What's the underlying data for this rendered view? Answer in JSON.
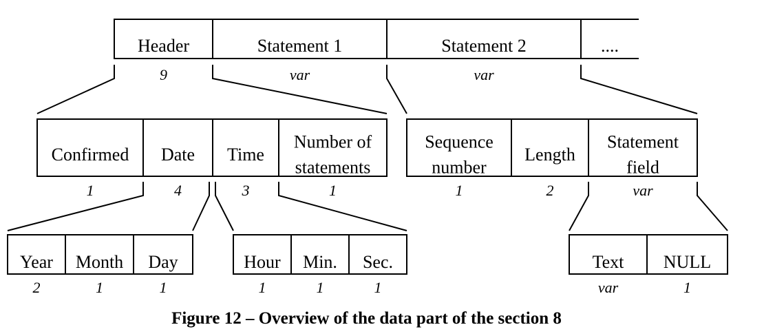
{
  "top_row": {
    "cells": [
      "Header",
      "Statement 1",
      "Statement 2",
      "...."
    ],
    "sizes": [
      "9",
      "var",
      "var"
    ]
  },
  "header_row": {
    "cells": [
      "Confirmed",
      "Date",
      "Time",
      "Number of statements"
    ],
    "lines": [
      [
        "Confirmed"
      ],
      [
        "Date"
      ],
      [
        "Time"
      ],
      [
        "Number of",
        "statements"
      ]
    ],
    "sizes": [
      "1",
      "4",
      "3",
      "1"
    ]
  },
  "statement_row": {
    "cells": [
      "Sequence number",
      "Length",
      "Statement field"
    ],
    "lines": [
      [
        "Sequence",
        "number"
      ],
      [
        "Length"
      ],
      [
        "Statement",
        "field"
      ]
    ],
    "sizes": [
      "1",
      "2",
      "var"
    ]
  },
  "date_row": {
    "cells": [
      "Year",
      "Month",
      "Day"
    ],
    "sizes": [
      "2",
      "1",
      "1"
    ]
  },
  "time_row": {
    "cells": [
      "Hour",
      "Min.",
      "Sec."
    ],
    "sizes": [
      "1",
      "1",
      "1"
    ]
  },
  "field_row": {
    "cells": [
      "Text",
      "NULL"
    ],
    "sizes": [
      "var",
      "1"
    ]
  },
  "caption": "Figure 12 – Overview of the data part of the section 8"
}
